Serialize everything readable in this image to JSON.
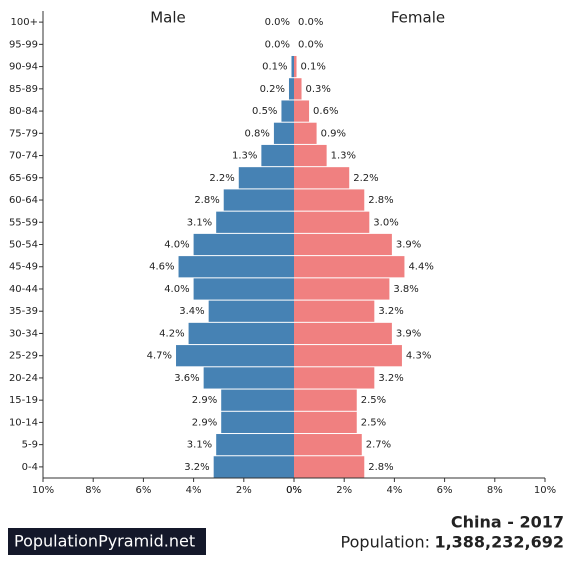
{
  "chart_data": {
    "type": "pyramid",
    "categories": [
      "100+",
      "95-99",
      "90-94",
      "85-89",
      "80-84",
      "75-79",
      "70-74",
      "65-69",
      "60-64",
      "55-59",
      "50-54",
      "45-49",
      "40-44",
      "35-39",
      "30-34",
      "25-29",
      "20-24",
      "15-19",
      "10-14",
      "5-9",
      "0-4"
    ],
    "series": [
      {
        "name": "Male",
        "color": "#4682b4",
        "values": [
          0.0,
          0.0,
          0.1,
          0.2,
          0.5,
          0.8,
          1.3,
          2.2,
          2.8,
          3.1,
          4.0,
          4.6,
          4.0,
          3.4,
          4.2,
          4.7,
          3.6,
          2.9,
          2.9,
          3.1,
          3.2
        ],
        "value_labels": [
          "0.0%",
          "0.0%",
          "0.1%",
          "0.2%",
          "0.5%",
          "0.8%",
          "1.3%",
          "2.2%",
          "2.8%",
          "3.1%",
          "4.0%",
          "4.6%",
          "4.0%",
          "3.4%",
          "4.2%",
          "4.7%",
          "3.6%",
          "2.9%",
          "2.9%",
          "3.1%",
          "3.2%"
        ]
      },
      {
        "name": "Female",
        "color": "#f08080",
        "values": [
          0.0,
          0.0,
          0.1,
          0.3,
          0.6,
          0.9,
          1.3,
          2.2,
          2.8,
          3.0,
          3.9,
          4.4,
          3.8,
          3.2,
          3.9,
          4.3,
          3.2,
          2.5,
          2.5,
          2.7,
          2.8
        ],
        "value_labels": [
          "0.0%",
          "0.0%",
          "0.1%",
          "0.3%",
          "0.6%",
          "0.9%",
          "1.3%",
          "2.2%",
          "2.8%",
          "3.0%",
          "3.9%",
          "4.4%",
          "3.8%",
          "3.2%",
          "3.9%",
          "4.3%",
          "3.2%",
          "2.5%",
          "2.5%",
          "2.7%",
          "2.8%"
        ]
      }
    ],
    "xlim": [
      0,
      10
    ],
    "xticks": [
      {
        "value": 0,
        "label": "0%"
      },
      {
        "value": 2,
        "label": "2%"
      },
      {
        "value": 4,
        "label": "4%"
      },
      {
        "value": 6,
        "label": "6%"
      },
      {
        "value": 8,
        "label": "8%"
      },
      {
        "value": 10,
        "label": "10%"
      }
    ]
  },
  "footer": {
    "brand": "PopulationPyramid.net",
    "title": "China - 2017",
    "population_label": "Population:",
    "population": "1,388,232,692"
  }
}
